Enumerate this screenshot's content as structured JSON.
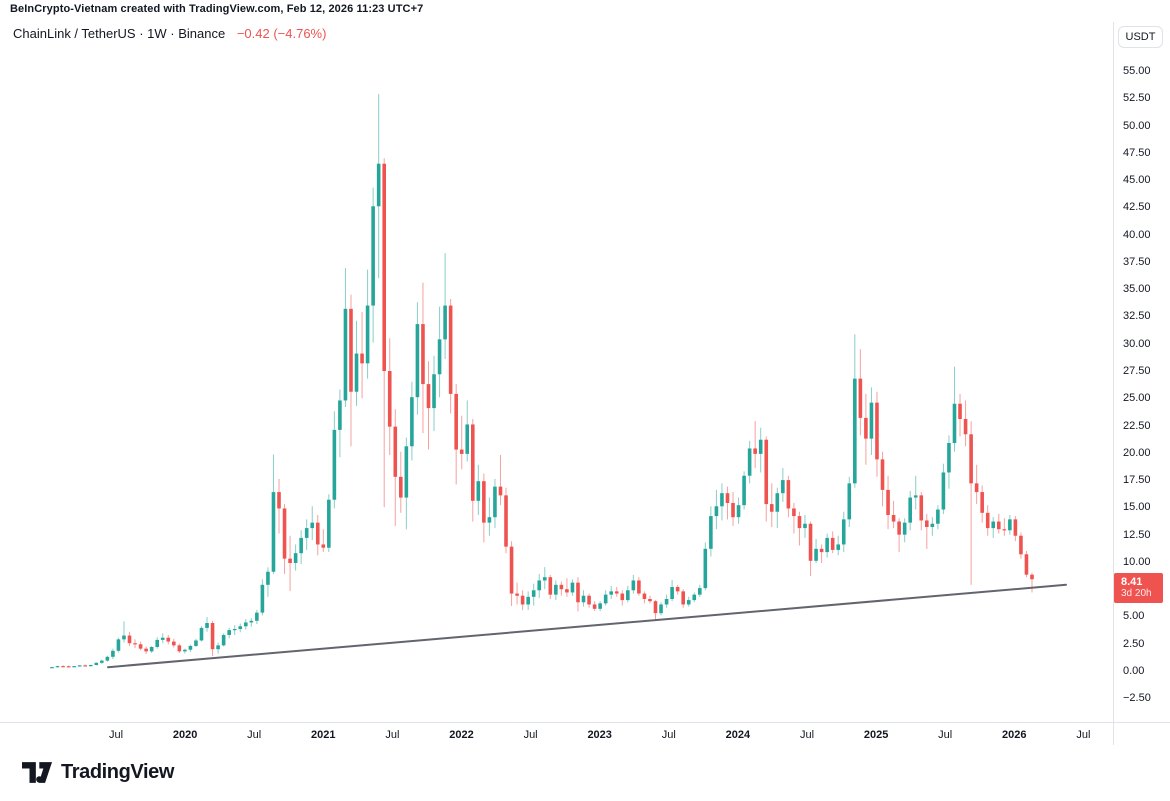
{
  "header": {
    "attribution": "BeInCrypto-Vietnam created with TradingView.com, Feb 12, 2026 11:23 UTC+7"
  },
  "legend": {
    "title": "ChainLink / TetherUS · 1W · Binance",
    "change": "−0.42 (−4.76%)"
  },
  "toolbar": {
    "currency_label": "USDT"
  },
  "price_badge": {
    "price": "8.41",
    "countdown": "3d 20h"
  },
  "footer": {
    "brand": "TradingView"
  },
  "colors": {
    "up": "#26a69a",
    "down": "#ef5350",
    "badge_bg": "#ef5350",
    "trendline": "#62656e",
    "axis_line": "#e0e3eb",
    "text": "#131722",
    "background": "#ffffff"
  },
  "chart_data": {
    "type": "candlestick",
    "symbol": "ChainLink / TetherUS",
    "interval": "1W",
    "exchange": "Binance",
    "quote_currency": "USDT",
    "last_price": 8.41,
    "change": "−0.42",
    "change_pct": "−4.76%",
    "bar_countdown": "3d 20h",
    "first_bar": "Jan 2019",
    "last_bar": "Feb 2026",
    "grid": "off",
    "y_axis": {
      "side": "right",
      "visible_min": -4.7,
      "visible_max": 59.3,
      "ticks": [
        55,
        52.5,
        50,
        47.5,
        45,
        42.5,
        40,
        37.5,
        35,
        32.5,
        30,
        27.5,
        25,
        22.5,
        20,
        17.5,
        15,
        12.5,
        10,
        5,
        2.5,
        0,
        -2.5
      ]
    },
    "x_axis": {
      "ticks": [
        {
          "label": "Jul",
          "bold": false
        },
        {
          "label": "2020",
          "bold": true
        },
        {
          "label": "Jul",
          "bold": false
        },
        {
          "label": "2021",
          "bold": true
        },
        {
          "label": "Jul",
          "bold": false
        },
        {
          "label": "2022",
          "bold": true
        },
        {
          "label": "Jul",
          "bold": false
        },
        {
          "label": "2023",
          "bold": true
        },
        {
          "label": "Jul",
          "bold": false
        },
        {
          "label": "2024",
          "bold": true
        },
        {
          "label": "Jul",
          "bold": false
        },
        {
          "label": "2025",
          "bold": true
        },
        {
          "label": "Jul",
          "bold": false
        },
        {
          "label": "2026",
          "bold": true
        },
        {
          "label": "Jul",
          "bold": false
        }
      ]
    },
    "trendline": {
      "description": "ascending support line from mid-2019 low to current price area",
      "price_start": 0.35,
      "price_end": 7.9
    },
    "candles": [
      [
        0.3,
        0.38,
        0.27,
        0.36
      ],
      [
        0.36,
        0.48,
        0.33,
        0.45
      ],
      [
        0.45,
        0.52,
        0.4,
        0.44
      ],
      [
        0.44,
        0.5,
        0.36,
        0.4
      ],
      [
        0.4,
        0.47,
        0.35,
        0.45
      ],
      [
        0.45,
        0.55,
        0.42,
        0.52
      ],
      [
        0.52,
        0.6,
        0.44,
        0.48
      ],
      [
        0.48,
        0.58,
        0.42,
        0.55
      ],
      [
        0.55,
        0.8,
        0.5,
        0.75
      ],
      [
        0.75,
        1.05,
        0.65,
        0.95
      ],
      [
        0.95,
        1.4,
        0.85,
        1.3
      ],
      [
        1.3,
        2.05,
        1.1,
        1.85
      ],
      [
        1.85,
        3.05,
        1.7,
        2.9
      ],
      [
        2.9,
        4.54,
        2.6,
        3.25
      ],
      [
        3.25,
        3.6,
        2.3,
        2.55
      ],
      [
        2.55,
        2.9,
        2.1,
        2.45
      ],
      [
        2.45,
        2.7,
        1.9,
        2.05
      ],
      [
        2.05,
        2.25,
        1.55,
        1.8
      ],
      [
        1.8,
        2.3,
        1.65,
        2.2
      ],
      [
        2.2,
        3.1,
        2.05,
        2.85
      ],
      [
        2.85,
        3.45,
        2.55,
        3.05
      ],
      [
        3.05,
        3.3,
        2.45,
        2.7
      ],
      [
        2.7,
        2.95,
        2.15,
        2.35
      ],
      [
        2.35,
        2.5,
        1.65,
        1.8
      ],
      [
        1.8,
        2.05,
        1.6,
        1.95
      ],
      [
        1.95,
        2.4,
        1.75,
        2.3
      ],
      [
        2.3,
        2.95,
        2.2,
        2.8
      ],
      [
        2.8,
        4.1,
        2.7,
        3.95
      ],
      [
        3.95,
        4.95,
        3.6,
        4.4
      ],
      [
        4.4,
        4.6,
        1.36,
        2.0
      ],
      [
        2.0,
        2.6,
        1.6,
        2.35
      ],
      [
        2.35,
        3.45,
        2.25,
        3.3
      ],
      [
        3.3,
        3.95,
        3.0,
        3.75
      ],
      [
        3.75,
        4.2,
        3.3,
        3.85
      ],
      [
        3.85,
        4.35,
        3.55,
        4.1
      ],
      [
        4.1,
        4.75,
        3.8,
        4.45
      ],
      [
        4.45,
        4.85,
        4.05,
        4.6
      ],
      [
        4.6,
        5.6,
        4.3,
        5.35
      ],
      [
        5.35,
        8.4,
        5.1,
        7.9
      ],
      [
        7.9,
        9.5,
        6.8,
        9.1
      ],
      [
        9.1,
        19.85,
        8.9,
        16.4
      ],
      [
        16.4,
        17.6,
        12.6,
        14.9
      ],
      [
        14.9,
        15.3,
        8.9,
        10.3
      ],
      [
        10.3,
        12.4,
        7.33,
        9.9
      ],
      [
        9.9,
        11.6,
        9.2,
        10.8
      ],
      [
        10.8,
        12.9,
        9.8,
        12.2
      ],
      [
        12.2,
        13.9,
        11.1,
        13.1
      ],
      [
        13.1,
        15.1,
        12.0,
        13.6
      ],
      [
        13.6,
        14.3,
        10.6,
        11.6
      ],
      [
        11.6,
        13.0,
        10.9,
        11.3
      ],
      [
        11.3,
        16.2,
        10.9,
        15.7
      ],
      [
        15.7,
        23.8,
        14.9,
        22.1
      ],
      [
        22.1,
        25.8,
        19.6,
        24.8
      ],
      [
        24.8,
        36.93,
        24.2,
        33.2
      ],
      [
        33.2,
        34.5,
        20.6,
        25.6
      ],
      [
        25.6,
        32.1,
        24.3,
        29.1
      ],
      [
        29.1,
        32.9,
        25.0,
        28.2
      ],
      [
        28.2,
        36.8,
        26.8,
        33.5
      ],
      [
        33.5,
        44.3,
        30.1,
        42.6
      ],
      [
        42.6,
        52.88,
        36.0,
        46.5
      ],
      [
        46.5,
        47.0,
        15.02,
        27.5
      ],
      [
        27.5,
        30.5,
        19.8,
        22.4
      ],
      [
        22.4,
        24.0,
        13.3,
        17.8
      ],
      [
        17.8,
        20.1,
        14.5,
        15.9
      ],
      [
        15.9,
        21.4,
        12.99,
        20.6
      ],
      [
        20.6,
        26.5,
        19.3,
        25.1
      ],
      [
        25.1,
        33.8,
        23.5,
        31.8
      ],
      [
        31.8,
        35.6,
        21.8,
        26.3
      ],
      [
        26.3,
        28.4,
        20.3,
        24.1
      ],
      [
        24.1,
        28.9,
        22.0,
        27.2
      ],
      [
        27.2,
        33.4,
        25.1,
        30.4
      ],
      [
        30.4,
        38.3,
        28.6,
        33.5
      ],
      [
        33.5,
        34.1,
        23.6,
        25.4
      ],
      [
        25.4,
        26.3,
        17.1,
        20.3
      ],
      [
        20.3,
        23.4,
        18.5,
        19.9
      ],
      [
        19.9,
        24.8,
        19.2,
        22.6
      ],
      [
        22.6,
        23.1,
        13.7,
        15.6
      ],
      [
        15.6,
        18.9,
        14.3,
        17.4
      ],
      [
        17.4,
        18.1,
        11.8,
        13.6
      ],
      [
        13.6,
        15.9,
        12.4,
        14.1
      ],
      [
        14.1,
        17.6,
        13.1,
        16.9
      ],
      [
        16.9,
        19.8,
        15.2,
        16.1
      ],
      [
        16.1,
        16.8,
        10.8,
        11.4
      ],
      [
        11.4,
        11.9,
        5.96,
        7.1
      ],
      [
        7.1,
        8.1,
        6.1,
        6.9
      ],
      [
        6.9,
        7.4,
        5.57,
        6.1
      ],
      [
        6.1,
        7.3,
        5.6,
        6.8
      ],
      [
        6.8,
        8.0,
        6.0,
        7.4
      ],
      [
        7.4,
        8.9,
        6.7,
        8.3
      ],
      [
        8.3,
        9.52,
        7.5,
        8.6
      ],
      [
        8.6,
        8.8,
        6.6,
        7.0
      ],
      [
        7.0,
        8.3,
        6.5,
        7.9
      ],
      [
        7.9,
        8.2,
        6.9,
        7.5
      ],
      [
        7.5,
        8.5,
        6.8,
        7.2
      ],
      [
        7.2,
        8.4,
        6.9,
        8.1
      ],
      [
        8.1,
        8.6,
        5.46,
        6.3
      ],
      [
        6.3,
        7.4,
        5.9,
        6.9
      ],
      [
        6.9,
        7.1,
        5.8,
        6.1
      ],
      [
        6.1,
        6.4,
        5.5,
        5.7
      ],
      [
        5.7,
        6.4,
        5.5,
        6.2
      ],
      [
        6.2,
        7.4,
        6.0,
        7.0
      ],
      [
        7.0,
        7.8,
        6.6,
        7.3
      ],
      [
        7.3,
        7.7,
        6.8,
        7.1
      ],
      [
        7.1,
        7.4,
        6.0,
        6.5
      ],
      [
        6.5,
        7.8,
        6.3,
        7.4
      ],
      [
        7.4,
        8.8,
        7.1,
        8.3
      ],
      [
        8.3,
        8.6,
        6.9,
        7.1
      ],
      [
        7.1,
        7.3,
        6.2,
        6.6
      ],
      [
        6.6,
        6.9,
        6.2,
        6.4
      ],
      [
        6.4,
        6.5,
        4.7,
        5.3
      ],
      [
        5.3,
        6.3,
        5.1,
        6.1
      ],
      [
        6.1,
        7.0,
        5.8,
        6.6
      ],
      [
        6.6,
        8.35,
        6.4,
        7.7
      ],
      [
        7.7,
        7.9,
        7.0,
        7.3
      ],
      [
        7.3,
        7.5,
        5.8,
        6.1
      ],
      [
        6.1,
        6.8,
        5.9,
        6.5
      ],
      [
        6.5,
        7.2,
        6.3,
        7.0
      ],
      [
        7.0,
        7.9,
        6.8,
        7.6
      ],
      [
        7.6,
        11.78,
        7.4,
        11.2
      ],
      [
        11.2,
        15.1,
        10.5,
        14.2
      ],
      [
        14.2,
        16.6,
        13.0,
        15.1
      ],
      [
        15.1,
        17.2,
        13.8,
        16.3
      ],
      [
        16.3,
        16.9,
        13.9,
        15.4
      ],
      [
        15.4,
        16.4,
        13.3,
        14.1
      ],
      [
        14.1,
        15.9,
        13.5,
        15.2
      ],
      [
        15.2,
        18.3,
        14.8,
        17.9
      ],
      [
        17.9,
        21.1,
        17.2,
        20.4
      ],
      [
        20.4,
        22.91,
        18.6,
        19.9
      ],
      [
        19.9,
        22.3,
        18.2,
        21.2
      ],
      [
        21.2,
        21.5,
        13.7,
        15.3
      ],
      [
        15.3,
        17.2,
        13.2,
        14.6
      ],
      [
        14.6,
        16.8,
        13.1,
        16.3
      ],
      [
        16.3,
        18.6,
        15.5,
        17.5
      ],
      [
        17.5,
        17.9,
        14.1,
        14.9
      ],
      [
        14.9,
        15.4,
        12.6,
        14.2
      ],
      [
        14.2,
        14.6,
        11.5,
        13.1
      ],
      [
        13.1,
        14.3,
        12.2,
        13.5
      ],
      [
        13.5,
        13.7,
        8.7,
        10.1
      ],
      [
        10.1,
        12.1,
        9.9,
        11.2
      ],
      [
        11.2,
        11.6,
        9.9,
        10.9
      ],
      [
        10.9,
        12.6,
        10.4,
        12.2
      ],
      [
        12.2,
        12.8,
        10.8,
        11.1
      ],
      [
        11.1,
        12.4,
        10.6,
        11.6
      ],
      [
        11.6,
        14.6,
        10.9,
        13.9
      ],
      [
        13.9,
        17.8,
        13.2,
        17.2
      ],
      [
        17.2,
        30.86,
        16.8,
        26.8
      ],
      [
        26.8,
        29.5,
        21.6,
        23.2
      ],
      [
        23.2,
        25.4,
        18.9,
        21.3
      ],
      [
        21.3,
        26.0,
        19.8,
        24.6
      ],
      [
        24.6,
        25.6,
        17.8,
        19.4
      ],
      [
        19.4,
        20.1,
        15.1,
        16.6
      ],
      [
        16.6,
        17.9,
        13.0,
        14.3
      ],
      [
        14.3,
        15.6,
        13.1,
        13.7
      ],
      [
        13.7,
        14.0,
        10.92,
        12.5
      ],
      [
        12.5,
        14.0,
        11.8,
        13.6
      ],
      [
        13.6,
        16.5,
        12.9,
        15.9
      ],
      [
        15.9,
        17.9,
        14.8,
        16.1
      ],
      [
        16.1,
        16.4,
        12.9,
        13.8
      ],
      [
        13.8,
        14.4,
        11.19,
        13.2
      ],
      [
        13.2,
        14.1,
        12.4,
        13.5
      ],
      [
        13.5,
        15.2,
        13.0,
        14.8
      ],
      [
        14.8,
        19.0,
        14.4,
        18.2
      ],
      [
        18.2,
        21.6,
        16.7,
        20.9
      ],
      [
        20.9,
        27.9,
        20.1,
        24.5
      ],
      [
        24.5,
        25.4,
        21.5,
        23.1
      ],
      [
        23.1,
        24.8,
        20.6,
        21.7
      ],
      [
        21.7,
        22.9,
        7.9,
        17.2
      ],
      [
        17.2,
        18.9,
        15.3,
        16.4
      ],
      [
        16.4,
        17.0,
        13.6,
        14.5
      ],
      [
        14.5,
        15.2,
        12.4,
        13.1
      ],
      [
        13.1,
        14.1,
        12.2,
        13.7
      ],
      [
        13.7,
        14.4,
        12.6,
        13.0
      ],
      [
        13.0,
        14.0,
        12.4,
        12.9
      ],
      [
        12.9,
        14.3,
        12.5,
        13.9
      ],
      [
        13.9,
        14.2,
        11.9,
        12.4
      ],
      [
        12.4,
        12.7,
        10.3,
        10.7
      ],
      [
        10.7,
        11.0,
        8.6,
        8.83
      ],
      [
        8.83,
        9.0,
        7.2,
        8.41
      ]
    ]
  }
}
